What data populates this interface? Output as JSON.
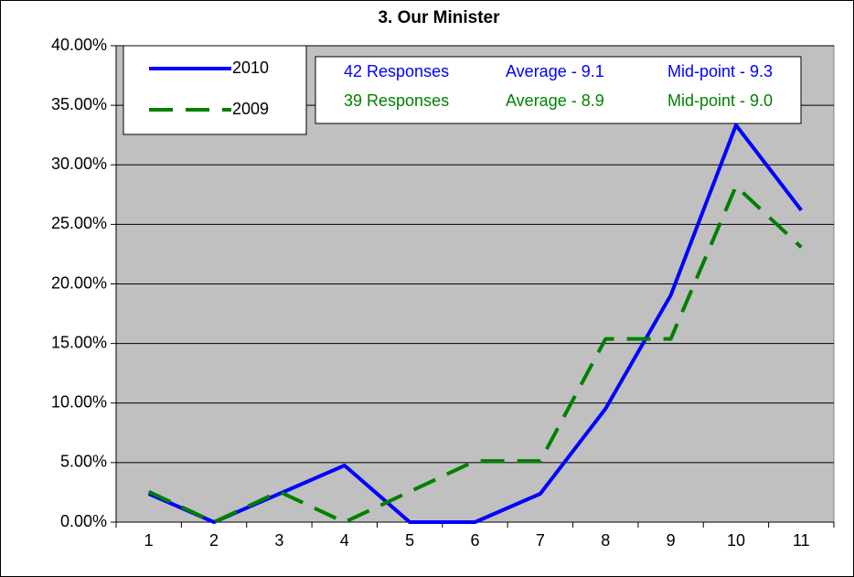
{
  "chart_data": {
    "type": "line",
    "title": "3. Our Minister",
    "categories": [
      "1",
      "2",
      "3",
      "4",
      "5",
      "6",
      "7",
      "8",
      "9",
      "10",
      "11"
    ],
    "series": [
      {
        "name": "2010",
        "color": "#0000ff",
        "dash": false,
        "values": [
          2.38,
          0,
          2.38,
          4.76,
          0,
          0,
          2.38,
          9.52,
          19.05,
          33.33,
          26.19
        ]
      },
      {
        "name": "2009",
        "color": "#008000",
        "dash": true,
        "values": [
          2.56,
          0,
          2.56,
          0,
          2.56,
          5.13,
          5.13,
          15.38,
          15.38,
          28.21,
          23.08
        ]
      }
    ],
    "annotations": [
      [
        "42 Responses",
        "Average - 9.1",
        "Mid-point - 9.3"
      ],
      [
        "39 Responses",
        "Average - 8.9",
        "Mid-point - 9.0"
      ]
    ],
    "ylim": [
      0,
      40
    ],
    "yticks": [
      {
        "value": 0,
        "label": "0.00%"
      },
      {
        "value": 5,
        "label": "5.00%"
      },
      {
        "value": 10,
        "label": "10.00%"
      },
      {
        "value": 15,
        "label": "15.00%"
      },
      {
        "value": 20,
        "label": "20.00%"
      },
      {
        "value": 25,
        "label": "25.00%"
      },
      {
        "value": 30,
        "label": "30.00%"
      },
      {
        "value": 35,
        "label": "35.00%"
      },
      {
        "value": 40,
        "label": "40.00%"
      }
    ],
    "grid": true,
    "background": "#c0c0c0"
  }
}
